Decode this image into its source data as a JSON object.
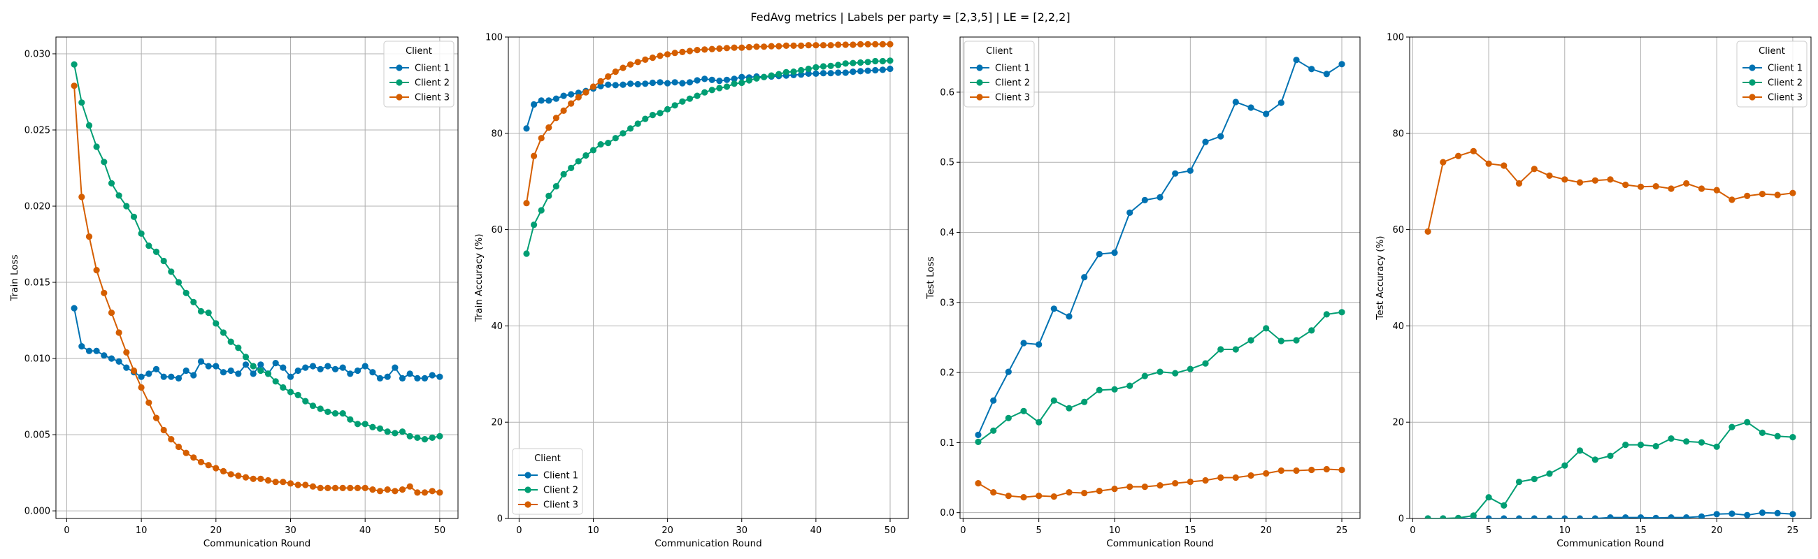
{
  "figure": {
    "title": "FedAvg metrics | Labels per party = [2,3,5] | LE = [2,2,2]"
  },
  "colors": {
    "Client 1": "#0072B2",
    "Client 2": "#009E73",
    "Client 3": "#D55E00"
  },
  "chart_data": [
    {
      "type": "line",
      "xlabel": "Communication Round",
      "ylabel": "Train Loss",
      "xlim": [
        -1.45,
        52.45
      ],
      "ylim": [
        -0.0005,
        0.0311
      ],
      "xticks": [
        0,
        10,
        20,
        30,
        40,
        50
      ],
      "yticks": [
        0.0,
        0.005,
        0.01,
        0.015,
        0.02,
        0.025,
        0.03
      ],
      "ytick_labels": [
        "0.000",
        "0.005",
        "0.010",
        "0.015",
        "0.020",
        "0.025",
        "0.030"
      ],
      "grid": true,
      "legend": {
        "title": "Client",
        "placement": "upper right"
      },
      "series": [
        {
          "name": "Client 1",
          "x_start": 1,
          "y": [
            0.0133,
            0.0108,
            0.0105,
            0.0105,
            0.0102,
            0.01,
            0.0098,
            0.0094,
            0.0091,
            0.0088,
            0.009,
            0.0093,
            0.0088,
            0.0088,
            0.0087,
            0.0092,
            0.0089,
            0.0098,
            0.0095,
            0.0095,
            0.0091,
            0.0092,
            0.009,
            0.0096,
            0.009,
            0.0096,
            0.009,
            0.0097,
            0.0094,
            0.0088,
            0.0092,
            0.0094,
            0.0095,
            0.0093,
            0.0095,
            0.0093,
            0.0094,
            0.009,
            0.0092,
            0.0095,
            0.0091,
            0.0087,
            0.0088,
            0.0094,
            0.0087,
            0.009,
            0.0087,
            0.0087,
            0.0089,
            0.0088
          ]
        },
        {
          "name": "Client 2",
          "x_start": 1,
          "y": [
            0.0293,
            0.0268,
            0.0253,
            0.0239,
            0.0229,
            0.0215,
            0.0207,
            0.02,
            0.0193,
            0.0182,
            0.0174,
            0.017,
            0.0164,
            0.0157,
            0.015,
            0.0143,
            0.0137,
            0.0131,
            0.013,
            0.0123,
            0.0117,
            0.0111,
            0.0107,
            0.0101,
            0.0095,
            0.0092,
            0.009,
            0.0085,
            0.0081,
            0.0078,
            0.0076,
            0.0072,
            0.0069,
            0.0067,
            0.0065,
            0.0064,
            0.0064,
            0.006,
            0.0057,
            0.0057,
            0.0055,
            0.0054,
            0.0052,
            0.0051,
            0.0052,
            0.0049,
            0.0048,
            0.0047,
            0.0048,
            0.0049
          ]
        },
        {
          "name": "Client 3",
          "x_start": 1,
          "y": [
            0.0279,
            0.0206,
            0.018,
            0.0158,
            0.0143,
            0.013,
            0.0117,
            0.0104,
            0.0092,
            0.0081,
            0.0071,
            0.0061,
            0.0053,
            0.0047,
            0.0042,
            0.0038,
            0.0035,
            0.0032,
            0.003,
            0.0028,
            0.0026,
            0.0024,
            0.0023,
            0.0022,
            0.0021,
            0.0021,
            0.002,
            0.0019,
            0.0019,
            0.0018,
            0.0017,
            0.0017,
            0.0016,
            0.0015,
            0.0015,
            0.0015,
            0.0015,
            0.0015,
            0.0015,
            0.0015,
            0.0014,
            0.0013,
            0.0014,
            0.0013,
            0.0014,
            0.0016,
            0.0012,
            0.0012,
            0.0013,
            0.0012
          ]
        }
      ]
    },
    {
      "type": "line",
      "xlabel": "Communication Round",
      "ylabel": "Train Accuracy (%)",
      "xlim": [
        -1.45,
        52.45
      ],
      "ylim": [
        0,
        100
      ],
      "xticks": [
        0,
        10,
        20,
        30,
        40,
        50
      ],
      "yticks": [
        0,
        20,
        40,
        60,
        80,
        100
      ],
      "ytick_labels": [
        "0",
        "20",
        "40",
        "60",
        "80",
        "100"
      ],
      "grid": true,
      "legend": {
        "title": "Client",
        "placement": "lower left"
      },
      "series": [
        {
          "name": "Client 1",
          "x_start": 1,
          "y": [
            81.0,
            86.0,
            86.8,
            86.8,
            87.2,
            87.8,
            88.1,
            88.4,
            88.8,
            89.3,
            89.8,
            90.1,
            90.0,
            90.1,
            90.3,
            90.2,
            90.3,
            90.5,
            90.6,
            90.4,
            90.6,
            90.4,
            90.6,
            91.0,
            91.3,
            91.1,
            90.9,
            91.1,
            91.3,
            91.7,
            91.6,
            91.8,
            91.7,
            91.8,
            91.9,
            92.0,
            92.1,
            92.2,
            92.4,
            92.4,
            92.5,
            92.5,
            92.6,
            92.6,
            92.8,
            92.9,
            93.0,
            93.1,
            93.2,
            93.4
          ]
        },
        {
          "name": "Client 2",
          "x_start": 1,
          "y": [
            55.0,
            61.0,
            64.0,
            67.0,
            69.0,
            71.5,
            72.8,
            74.2,
            75.4,
            76.5,
            77.7,
            78.0,
            79.0,
            80.0,
            81.0,
            82.0,
            83.0,
            83.8,
            84.2,
            85.0,
            85.8,
            86.6,
            87.2,
            87.8,
            88.5,
            89.0,
            89.4,
            89.7,
            90.3,
            90.5,
            91.0,
            91.4,
            91.7,
            92.0,
            92.3,
            92.7,
            92.8,
            93.1,
            93.4,
            93.7,
            93.9,
            94.0,
            94.2,
            94.5,
            94.6,
            94.7,
            94.8,
            95.0,
            95.0,
            95.1
          ]
        },
        {
          "name": "Client 3",
          "x_start": 1,
          "y": [
            65.5,
            75.3,
            79.0,
            81.2,
            83.2,
            84.7,
            86.2,
            87.5,
            88.5,
            89.7,
            90.8,
            91.8,
            92.8,
            93.6,
            94.3,
            94.8,
            95.3,
            95.7,
            96.1,
            96.4,
            96.7,
            96.9,
            97.1,
            97.3,
            97.4,
            97.5,
            97.6,
            97.7,
            97.8,
            97.8,
            97.9,
            98.0,
            98.0,
            98.1,
            98.1,
            98.2,
            98.2,
            98.2,
            98.3,
            98.3,
            98.3,
            98.3,
            98.4,
            98.4,
            98.4,
            98.5,
            98.5,
            98.5,
            98.5,
            98.5
          ]
        }
      ]
    },
    {
      "type": "line",
      "xlabel": "Communication Round",
      "ylabel": "Test Loss",
      "xlim": [
        -0.2,
        26.2
      ],
      "ylim": [
        -0.0083,
        0.6787
      ],
      "xticks": [
        0,
        5,
        10,
        15,
        20,
        25
      ],
      "yticks": [
        0.0,
        0.1,
        0.2,
        0.3,
        0.4,
        0.5,
        0.6
      ],
      "ytick_labels": [
        "0.0",
        "0.1",
        "0.2",
        "0.3",
        "0.4",
        "0.5",
        "0.6"
      ],
      "grid": true,
      "legend": {
        "title": "Client",
        "placement": "upper left"
      },
      "series": [
        {
          "name": "Client 1",
          "x_start": 1,
          "y": [
            0.111,
            0.16,
            0.201,
            0.242,
            0.24,
            0.291,
            0.28,
            0.336,
            0.369,
            0.371,
            0.428,
            0.446,
            0.45,
            0.484,
            0.488,
            0.529,
            0.537,
            0.586,
            0.578,
            0.569,
            0.585,
            0.646,
            0.633,
            0.626,
            0.64
          ]
        },
        {
          "name": "Client 2",
          "x_start": 1,
          "y": [
            0.101,
            0.117,
            0.135,
            0.145,
            0.129,
            0.16,
            0.149,
            0.158,
            0.175,
            0.176,
            0.181,
            0.195,
            0.201,
            0.199,
            0.205,
            0.213,
            0.233,
            0.233,
            0.246,
            0.263,
            0.245,
            0.246,
            0.26,
            0.283,
            0.286
          ]
        },
        {
          "name": "Client 3",
          "x_start": 1,
          "y": [
            0.042,
            0.029,
            0.024,
            0.022,
            0.024,
            0.023,
            0.029,
            0.028,
            0.031,
            0.034,
            0.037,
            0.037,
            0.039,
            0.042,
            0.044,
            0.046,
            0.05,
            0.05,
            0.053,
            0.056,
            0.06,
            0.06,
            0.061,
            0.062,
            0.061
          ]
        }
      ]
    },
    {
      "type": "line",
      "xlabel": "Communication Round",
      "ylabel": "Test Accuracy (%)",
      "xlim": [
        -0.2,
        26.2
      ],
      "ylim": [
        0,
        100
      ],
      "xticks": [
        0,
        5,
        10,
        15,
        20,
        25
      ],
      "yticks": [
        0,
        20,
        40,
        60,
        80,
        100
      ],
      "ytick_labels": [
        "0",
        "20",
        "40",
        "60",
        "80",
        "100"
      ],
      "grid": true,
      "legend": {
        "title": "Client",
        "placement": "upper right"
      },
      "series": [
        {
          "name": "Client 1",
          "x_start": 1,
          "y": [
            0.0,
            0.0,
            0.0,
            0.0,
            0.0,
            0.0,
            0.0,
            0.0,
            0.0,
            0.0,
            0.0,
            0.0,
            0.2,
            0.2,
            0.2,
            0.1,
            0.2,
            0.2,
            0.4,
            0.9,
            1.0,
            0.7,
            1.2,
            1.1,
            0.9
          ]
        },
        {
          "name": "Client 2",
          "x_start": 1,
          "y": [
            0.0,
            0.0,
            0.1,
            0.6,
            4.4,
            2.7,
            7.6,
            8.2,
            9.3,
            11.0,
            14.1,
            12.2,
            13.0,
            15.3,
            15.3,
            15.0,
            16.6,
            16.0,
            15.8,
            14.9,
            19.0,
            20.0,
            17.8,
            17.1,
            16.9
          ]
        },
        {
          "name": "Client 3",
          "x_start": 1,
          "y": [
            59.6,
            74.0,
            75.3,
            76.3,
            73.7,
            73.3,
            69.6,
            72.6,
            71.2,
            70.4,
            69.8,
            70.2,
            70.4,
            69.3,
            68.9,
            69.0,
            68.5,
            69.6,
            68.5,
            68.2,
            66.2,
            67.0,
            67.4,
            67.2,
            67.6
          ]
        }
      ]
    }
  ]
}
